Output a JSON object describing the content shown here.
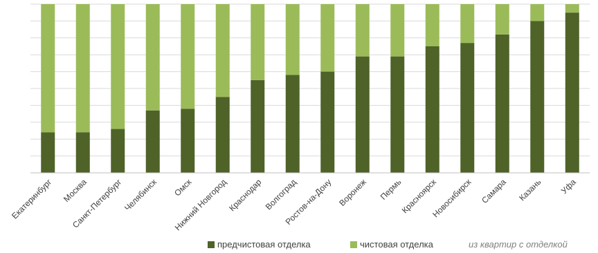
{
  "chart_data": {
    "type": "bar",
    "stacked": true,
    "percent": true,
    "categories": [
      "Екатеринбург",
      "Москва",
      "Санкт-Петербург",
      "Челябинск",
      "Омск",
      "Нижний Новгород",
      "Краснодар",
      "Волгоград",
      "Ростов-на-Дону",
      "Воронеж",
      "Пермь",
      "Красноярск",
      "Новосибирск",
      "Самара",
      "Казань",
      "Уфа"
    ],
    "series": [
      {
        "name": "предчистовая отделка",
        "color": "#4f6228",
        "values": [
          24,
          24,
          26,
          37,
          38,
          45,
          55,
          58,
          60,
          69,
          69,
          75,
          77,
          82,
          90,
          95
        ]
      },
      {
        "name": "чистовая отделка",
        "color": "#9bbb59",
        "values": [
          76,
          76,
          74,
          63,
          62,
          55,
          45,
          42,
          40,
          31,
          31,
          25,
          23,
          18,
          10,
          5
        ]
      }
    ],
    "ylim": [
      0,
      100
    ],
    "grid": true,
    "legend": "bottom",
    "note": "из квартир с отделкой"
  }
}
